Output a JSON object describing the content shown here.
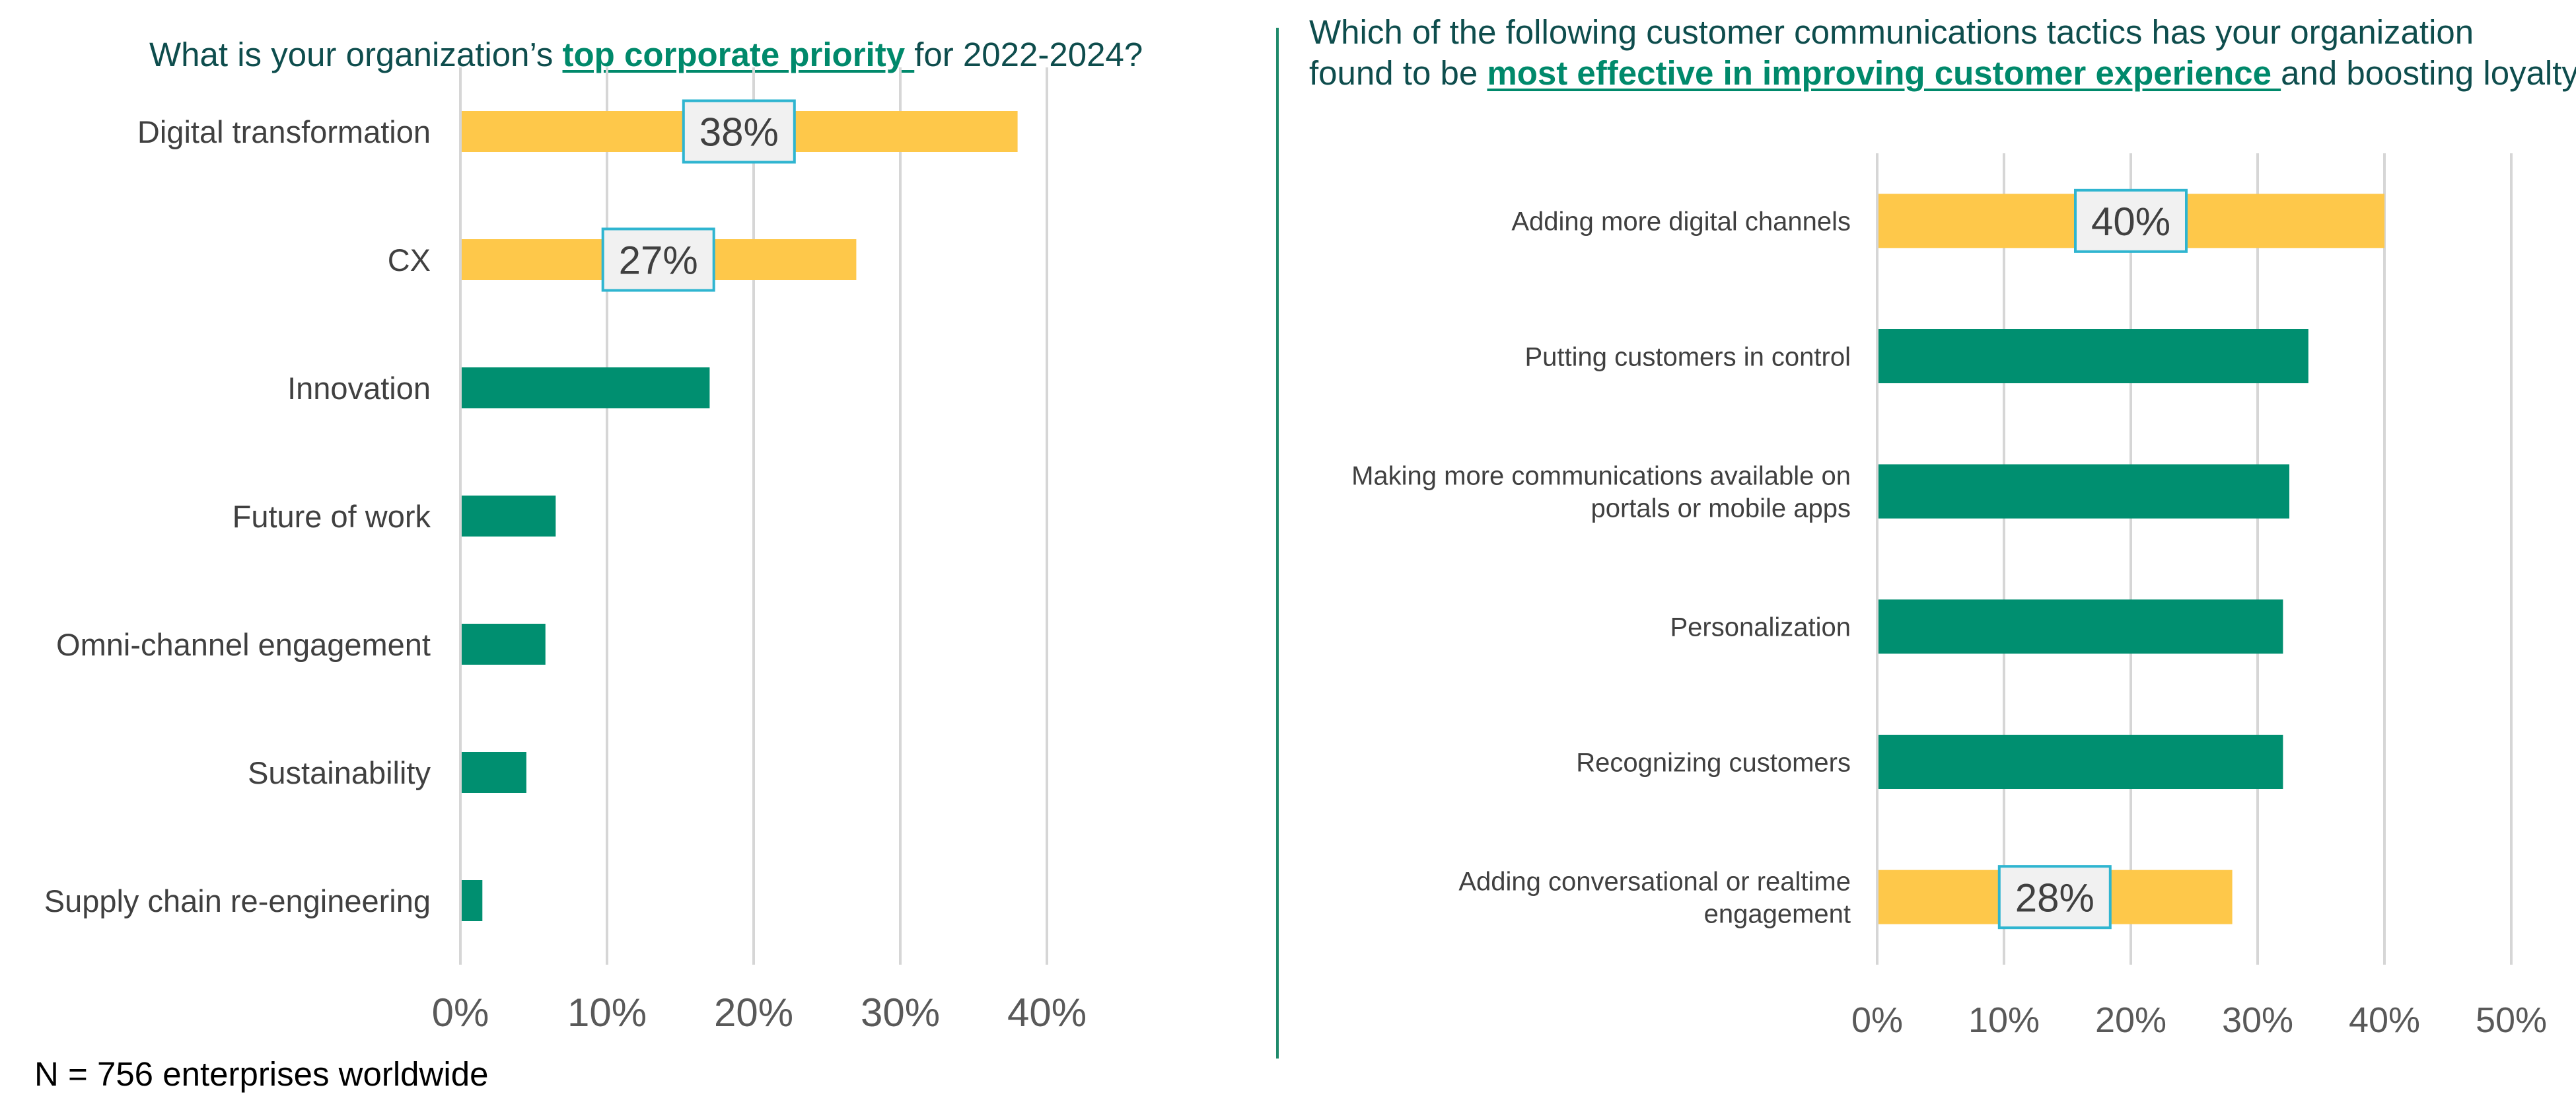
{
  "chart_data": [
    {
      "type": "bar",
      "orientation": "horizontal",
      "title_parts": {
        "before": "What is your organization’s ",
        "highlight": "top corporate priority ",
        "after": "for 2022-2024?"
      },
      "categories": [
        "Digital transformation",
        "CX",
        "Innovation",
        "Future of work",
        "Omni-channel engagement",
        "Sustainability",
        "Supply chain re-engineering"
      ],
      "values": [
        38,
        27,
        17,
        6.5,
        5.8,
        4.5,
        1.5
      ],
      "highlight_indices": [
        0,
        1
      ],
      "data_labels": [
        "38%",
        "27%",
        null,
        null,
        null,
        null,
        null
      ],
      "xlim": [
        0,
        40
      ],
      "xticks": [
        0,
        10,
        20,
        30,
        40
      ],
      "xtick_labels": [
        "0%",
        "10%",
        "20%",
        "30%",
        "40%"
      ],
      "grid": true,
      "colors": {
        "highlight": "#fec84a",
        "default": "#008f70",
        "label_border": "#2fb5d0",
        "label_bg": "#f1f1f1"
      }
    },
    {
      "type": "bar",
      "orientation": "horizontal",
      "title_lines": [
        {
          "before": "Which of the following customer communications tactics has your organization",
          "highlight": "",
          "after": ""
        },
        {
          "before": "found to be ",
          "highlight": "most effective in improving customer experience ",
          "after": "and boosting loyalty?"
        }
      ],
      "categories": [
        [
          "Adding more digital channels"
        ],
        [
          "Putting customers in control"
        ],
        [
          "Making more communications available on",
          "portals or mobile apps"
        ],
        [
          "Personalization"
        ],
        [
          "Recognizing customers"
        ],
        [
          "Adding conversational or realtime",
          "engagement"
        ]
      ],
      "values": [
        40,
        34,
        32.5,
        32,
        32,
        28
      ],
      "highlight_indices": [
        0,
        5
      ],
      "data_labels": [
        "40%",
        null,
        null,
        null,
        null,
        "28%"
      ],
      "xlim": [
        0,
        50
      ],
      "xticks": [
        0,
        10,
        20,
        30,
        40,
        50
      ],
      "xtick_labels": [
        "0%",
        "10%",
        "20%",
        "30%",
        "40%",
        "50%"
      ],
      "grid": true,
      "colors": {
        "highlight": "#fec84a",
        "default": "#008f70",
        "label_border": "#2fb5d0",
        "label_bg": "#f1f1f1"
      }
    }
  ],
  "footnote": "N = 756 enterprises worldwide"
}
